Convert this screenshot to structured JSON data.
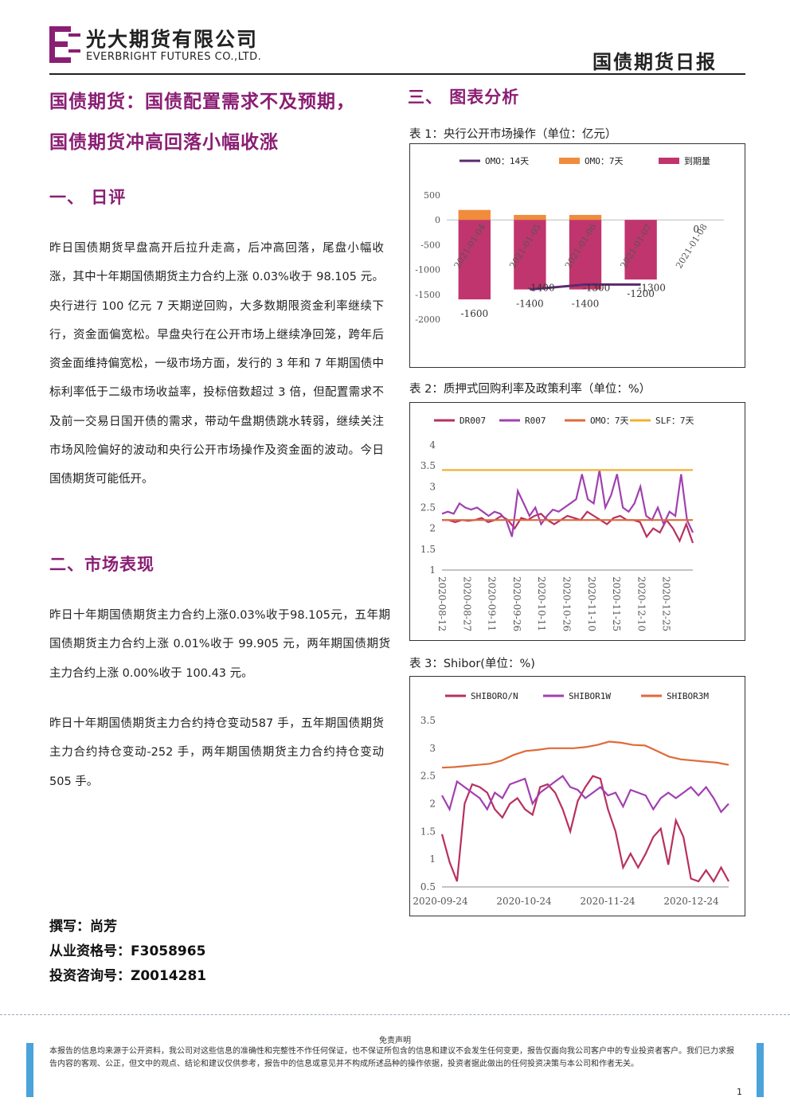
{
  "header": {
    "company_cn": "光大期货有限公司",
    "company_en": "EVERBRIGHT FUTURES CO.,LTD.",
    "report_title": "国债期货日报"
  },
  "headline": {
    "line1": "国债期货：国债配置需求不及预期，",
    "line2": "国债期货冲高回落小幅收涨"
  },
  "section1": {
    "heading": "一、 日评",
    "body": "昨日国债期货早盘高开后拉升走高，后冲高回落，尾盘小幅收涨，其中十年期国债期货主力合约上涨 0.03%收于 98.105 元。央行进行 100 亿元 7 天期逆回购，大多数期限资金利率继续下行，资金面偏宽松。早盘央行在公开市场上继续净回笼，跨年后资金面维持偏宽松，一级市场方面，发行的 3 年和 7 年期国债中标利率低于二级市场收益率，投标倍数超过 3 倍，但配置需求不及前一交易日国开债的需求，带动午盘期债跳水转弱，继续关注市场风险偏好的波动和央行公开市场操作及资金面的波动。今日国债期货可能低开。"
  },
  "section2": {
    "heading": "二、市场表现",
    "para1": "昨日十年期国债期货主力合约上涨0.03%收于98.105元，五年期国债期货主力合约上涨 0.01%收于 99.905 元，两年期国债期货主力合约上涨 0.00%收于 100.43 元。",
    "para2": "昨日十年期国债期货主力合约持仓变动587 手，五年期国债期货主力合约持仓变动-252 手，两年期国债期货主力合约持仓变动 505 手。"
  },
  "author": {
    "writer": "撰写：尚芳",
    "qualification": "从业资格号：F3058965",
    "consulting": "投资咨询号：Z0014281"
  },
  "section3": {
    "heading": "三、 图表分析"
  },
  "chart_data": [
    {
      "type": "bar",
      "caption": "表 1：央行公开市场操作（单位：亿元）",
      "categories": [
        "2021-01-04",
        "2021-01-05",
        "2021-01-06",
        "2021-01-07",
        "2021-01-08"
      ],
      "series": [
        {
          "name": "OMO：14天",
          "kind": "line",
          "values": [
            null,
            -1400,
            -1300,
            -1300,
            null
          ],
          "color": "#5a2a6e"
        },
        {
          "name": "OMO：7天",
          "kind": "bar",
          "values": [
            200,
            100,
            100,
            0,
            0
          ],
          "color": "#f08c3c"
        },
        {
          "name": "到期量",
          "kind": "bar",
          "values": [
            -1600,
            -1400,
            -1400,
            -1200,
            0
          ],
          "color": "#c0356d"
        }
      ],
      "data_labels": [
        {
          "text": "-1600",
          "x": 0,
          "y": -1600
        },
        {
          "text": "-1400",
          "x": 1,
          "y": -1400
        },
        {
          "text": "-1400",
          "x": 2,
          "y": -1400
        },
        {
          "text": "-1200",
          "x": 3,
          "y": -1200
        },
        {
          "text": "-1400",
          "x": 1,
          "y": -1300
        },
        {
          "text": "-1300",
          "x": 2,
          "y": -1300
        },
        {
          "text": "-1300",
          "x": 3,
          "y": -1300
        },
        {
          "text": "0",
          "x": 4,
          "y": 0
        }
      ],
      "yticks": [
        "500",
        "0",
        "-500",
        "-1000",
        "-1500",
        "-2000"
      ],
      "ylim": [
        -2000,
        500
      ],
      "legend": "top"
    },
    {
      "type": "line",
      "caption": "表 2：质押式回购利率及政策利率（单位：%）",
      "x_ticks": [
        "2020-08-12",
        "2020-08-27",
        "2020-09-11",
        "2020-09-26",
        "2020-10-11",
        "2020-10-26",
        "2020-11-10",
        "2020-11-25",
        "2020-12-10",
        "2020-12-25"
      ],
      "series": [
        {
          "name": "DR007",
          "color": "#b83060",
          "values": [
            2.2,
            2.2,
            2.15,
            2.2,
            2.18,
            2.2,
            2.25,
            2.15,
            2.2,
            2.3,
            2.2,
            2.0,
            2.25,
            2.2,
            2.3,
            2.35,
            2.2,
            2.1,
            2.2,
            2.3,
            2.25,
            2.2,
            2.4,
            2.3,
            2.2,
            2.1,
            2.25,
            2.3,
            2.2,
            2.2,
            2.15,
            1.8,
            2.0,
            1.9,
            2.2,
            2.0,
            1.7,
            2.1,
            1.65
          ]
        },
        {
          "name": "R007",
          "color": "#a040b0",
          "values": [
            2.35,
            2.4,
            2.35,
            2.6,
            2.5,
            2.45,
            2.5,
            2.4,
            2.3,
            2.4,
            2.35,
            2.2,
            1.8,
            2.9,
            2.6,
            2.3,
            2.5,
            2.1,
            2.3,
            2.45,
            2.4,
            2.5,
            2.6,
            2.7,
            3.3,
            2.7,
            2.6,
            3.4,
            2.5,
            2.8,
            3.3,
            2.5,
            2.4,
            2.6,
            3.0,
            2.3,
            2.2,
            2.5,
            2.1,
            2.4,
            2.3,
            3.3,
            2.2,
            1.9
          ]
        },
        {
          "name": "OMO：7天",
          "color": "#e06a3a",
          "values": [
            2.2,
            2.2
          ]
        },
        {
          "name": "SLF：7天",
          "color": "#f2b133",
          "values": [
            3.4,
            3.4
          ]
        }
      ],
      "yticks": [
        "4",
        "3.5",
        "3",
        "2.5",
        "2",
        "1.5",
        "1"
      ],
      "ylim": [
        1,
        4
      ],
      "legend": "top"
    },
    {
      "type": "line",
      "caption": "表 3：Shibor(单位：%)",
      "x_ticks": [
        "2020-09-24",
        "2020-10-24",
        "2020-11-24",
        "2020-12-24"
      ],
      "series": [
        {
          "name": "SHIBORO/N",
          "color": "#b83060",
          "values": [
            1.45,
            0.95,
            0.6,
            2.0,
            2.35,
            2.3,
            2.2,
            1.9,
            1.75,
            2.0,
            2.1,
            1.9,
            1.8,
            2.3,
            2.35,
            2.2,
            1.9,
            1.5,
            2.05,
            2.3,
            2.5,
            2.45,
            1.9,
            1.5,
            0.85,
            1.1,
            0.85,
            1.1,
            1.4,
            1.55,
            0.9,
            1.7,
            1.4,
            0.65,
            0.6,
            0.8,
            0.6,
            0.85,
            0.6
          ]
        },
        {
          "name": "SHIBOR1W",
          "color": "#a040b0",
          "values": [
            2.15,
            1.9,
            2.4,
            2.3,
            2.2,
            2.1,
            1.9,
            2.2,
            2.1,
            2.35,
            2.4,
            2.45,
            2.0,
            2.2,
            2.3,
            2.4,
            2.5,
            2.3,
            2.25,
            2.1,
            2.2,
            2.3,
            2.15,
            2.2,
            1.95,
            2.25,
            2.2,
            2.15,
            1.9,
            2.1,
            2.2,
            2.1,
            2.2,
            2.3,
            2.15,
            2.3,
            2.1,
            1.85,
            2.0
          ]
        },
        {
          "name": "SHIBOR3M",
          "color": "#e06a3a",
          "values": [
            2.65,
            2.66,
            2.68,
            2.7,
            2.72,
            2.78,
            2.88,
            2.95,
            2.97,
            3.0,
            3.0,
            3.0,
            3.02,
            3.06,
            3.12,
            3.1,
            3.06,
            3.05,
            2.95,
            2.85,
            2.8,
            2.78,
            2.76,
            2.74,
            2.7
          ]
        }
      ],
      "yticks": [
        "3.5",
        "3",
        "2.5",
        "2",
        "1.5",
        "1",
        "0.5"
      ],
      "ylim": [
        0.5,
        3.5
      ],
      "legend": "top"
    }
  ],
  "footer": {
    "disclaimer_title": "免责声明",
    "disclaimer_body": "本报告的信息均来源于公开资料，我公司对这些信息的准确性和完整性不作任何保证，也不保证所包含的信息和建议不会发生任何变更，报告仅面向我公司客户中的专业投资者客户。我们已力求报告内容的客观、公正，但文中的观点、结论和建议仅供参考，报告中的信息或意见并不构成所述品种的操作依据，投资者据此做出的任何投资决策与本公司和作者无关。",
    "page_number": "1"
  },
  "colors": {
    "accent": "#8a1e73",
    "footer_bar": "#4aa3d9"
  }
}
